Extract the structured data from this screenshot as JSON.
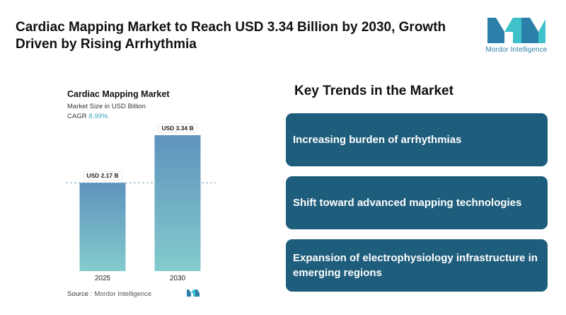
{
  "header": {
    "headline": "Cardiac Mapping Market to Reach USD 3.34 Billion by 2030, Growth Driven by Rising Arrhythmia"
  },
  "logo": {
    "text": "Mordor Intelligence",
    "icon": "mordor-intelligence-logo-icon",
    "colors": [
      "#2b7fa8",
      "#3fc1c9"
    ]
  },
  "chart_data": {
    "type": "bar",
    "title": "Cardiac Mapping Market",
    "subtitle": "Market Size in USD Billion",
    "cagr_label": "CAGR",
    "cagr_value": "8.99%",
    "categories": [
      "2025",
      "2030"
    ],
    "values": [
      2.17,
      3.34
    ],
    "data_labels": [
      "USD 2.17 B",
      "USD 3.34 B"
    ],
    "reference_line_value": 2.17,
    "ylim": [
      0,
      3.6
    ],
    "grid": false,
    "bar_gradient": [
      "#5e93bd",
      "#84cbcd"
    ]
  },
  "source": {
    "label": "Source :",
    "name": "Mordor Intelligence"
  },
  "trends": {
    "title": "Key Trends in the Market",
    "card_color": "#1e5d7c",
    "items": [
      "Increasing burden of arrhythmias",
      "Shift toward advanced mapping technologies",
      "Expansion of electrophysiology infrastructure in emerging regions"
    ]
  }
}
